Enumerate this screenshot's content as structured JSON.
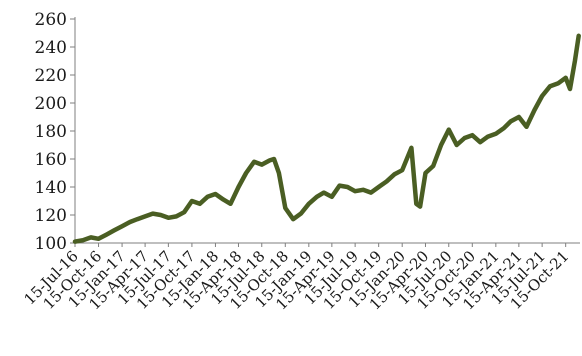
{
  "chart_data": {
    "type": "line",
    "title": "",
    "xlabel": "",
    "ylabel": "",
    "ylim": [
      100,
      260
    ],
    "yticks": [
      100,
      120,
      140,
      160,
      180,
      200,
      220,
      240,
      260
    ],
    "xtick_labels": [
      "15-Jul-16",
      "15-Oct-16",
      "15-Jan-17",
      "15-Apr-17",
      "15-Jul-17",
      "15-Oct-17",
      "15-Jan-18",
      "15-Apr-18",
      "15-Jul-18",
      "15-Oct-18",
      "15-Jan-19",
      "15-Apr-19",
      "15-Jul-19",
      "15-Oct-19",
      "15-Jan-20",
      "15-Apr-20",
      "15-Jul-20",
      "15-Oct-20",
      "15-Jan-21",
      "15-Apr-21",
      "15-Jul-21",
      "15-Oct-21"
    ],
    "grid": false,
    "line_color": "#4a5e23",
    "series": [
      {
        "x": [
          "2016-07-15",
          "2016-08-15",
          "2016-09-15",
          "2016-10-15",
          "2016-11-15",
          "2016-12-15",
          "2017-01-15",
          "2017-02-15",
          "2017-03-15",
          "2017-04-15",
          "2017-05-15",
          "2017-06-15",
          "2017-07-15",
          "2017-08-15",
          "2017-09-15",
          "2017-10-15",
          "2017-11-15",
          "2017-12-15",
          "2018-01-15",
          "2018-02-15",
          "2018-03-15",
          "2018-04-15",
          "2018-05-15",
          "2018-06-15",
          "2018-07-15",
          "2018-08-15",
          "2018-09-01",
          "2018-09-20",
          "2018-10-15",
          "2018-11-15",
          "2018-12-15",
          "2019-01-15",
          "2019-02-15",
          "2019-03-15",
          "2019-04-15",
          "2019-05-15",
          "2019-06-15",
          "2019-07-15",
          "2019-08-15",
          "2019-09-15",
          "2019-10-15",
          "2019-11-15",
          "2019-12-15",
          "2020-01-15",
          "2020-02-20",
          "2020-03-10",
          "2020-03-25",
          "2020-04-15",
          "2020-05-15",
          "2020-06-15",
          "2020-07-15",
          "2020-08-15",
          "2020-09-15",
          "2020-10-15",
          "2020-11-15",
          "2020-12-15",
          "2021-01-15",
          "2021-02-15",
          "2021-03-15",
          "2021-04-15",
          "2021-05-15",
          "2021-06-15",
          "2021-07-15",
          "2021-08-15",
          "2021-09-15",
          "2021-10-15",
          "2021-11-01",
          "2021-11-20",
          "2021-12-05"
        ],
        "y": [
          101,
          102,
          104,
          103,
          106,
          109,
          112,
          115,
          117,
          119,
          121,
          120,
          118,
          119,
          122,
          130,
          128,
          133,
          135,
          131,
          128,
          140,
          150,
          158,
          156,
          159,
          160,
          150,
          125,
          117,
          121,
          128,
          133,
          136,
          133,
          141,
          140,
          137,
          138,
          136,
          140,
          144,
          149,
          152,
          168,
          128,
          126,
          150,
          155,
          170,
          181,
          170,
          175,
          177,
          172,
          176,
          178,
          182,
          187,
          190,
          183,
          195,
          205,
          212,
          214,
          218,
          210,
          230,
          248
        ]
      }
    ]
  }
}
